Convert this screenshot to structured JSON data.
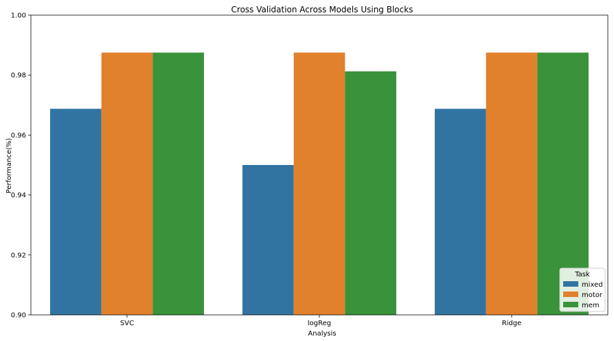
{
  "chart_data": {
    "type": "bar",
    "title": "Cross Validation Across Models Using Blocks",
    "xlabel": "Analysis",
    "ylabel": "Performance(%)",
    "categories": [
      "SVC",
      "logReg",
      "Ridge"
    ],
    "ylim": [
      0.9,
      1.0
    ],
    "yticks": [
      "0.90",
      "0.92",
      "0.94",
      "0.96",
      "0.98",
      "1.00"
    ],
    "grid": false,
    "legend": {
      "title": "Task",
      "position": "bottom-right"
    },
    "series": [
      {
        "name": "mixed",
        "color": "#3274a1",
        "values": [
          0.96875,
          0.95,
          0.96875
        ]
      },
      {
        "name": "motor",
        "color": "#e1812c",
        "values": [
          0.9875,
          0.9875,
          0.9875
        ]
      },
      {
        "name": "mem",
        "color": "#3a923a",
        "values": [
          0.9875,
          0.98125,
          0.9875
        ]
      }
    ]
  }
}
